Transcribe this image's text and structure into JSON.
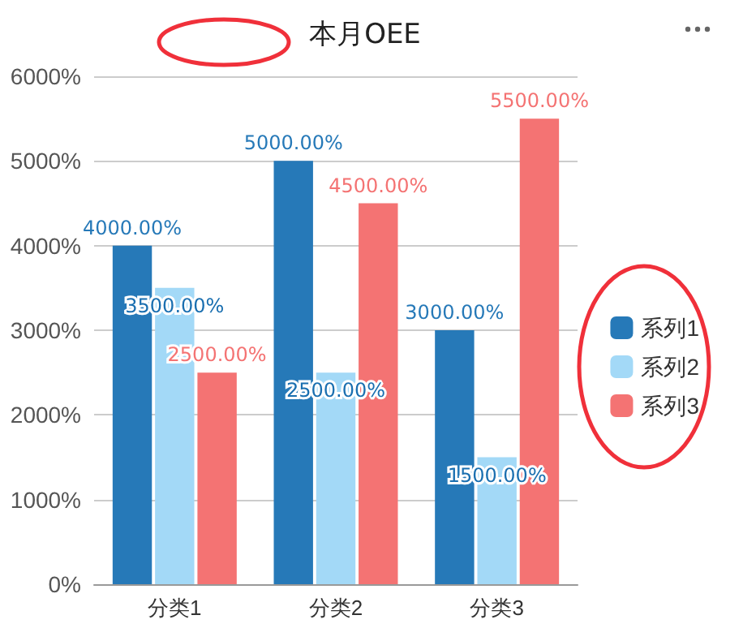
{
  "chart_data": {
    "type": "bar",
    "title": "本月OEE",
    "categories": [
      "分类1",
      "分类2",
      "分类3"
    ],
    "series": [
      {
        "name": "系列1",
        "color": "#2679b8",
        "values": [
          4000,
          5000,
          3000
        ],
        "value_labels": [
          "4000.00%",
          "5000.00%",
          "3000.00%"
        ]
      },
      {
        "name": "系列2",
        "color": "#a3d9f7",
        "values": [
          3500,
          2500,
          1500
        ],
        "value_labels": [
          "3500.00%",
          "2500.00%",
          "1500.00%"
        ]
      },
      {
        "name": "系列3",
        "color": "#f47373",
        "values": [
          2500,
          4500,
          5500
        ],
        "value_labels": [
          "2500.00%",
          "4500.00%",
          "5500.00%"
        ]
      }
    ],
    "ylim": [
      0,
      6000
    ],
    "yticks": [
      {
        "value": 0,
        "label": "0%"
      },
      {
        "value": 1000,
        "label": "1000%"
      },
      {
        "value": 2000,
        "label": "2000%"
      },
      {
        "value": 3000,
        "label": "3000%"
      },
      {
        "value": 4000,
        "label": "4000%"
      },
      {
        "value": 5000,
        "label": "5000%"
      },
      {
        "value": 6000,
        "label": "6000%"
      }
    ],
    "grid": "y",
    "legend": "right"
  }
}
